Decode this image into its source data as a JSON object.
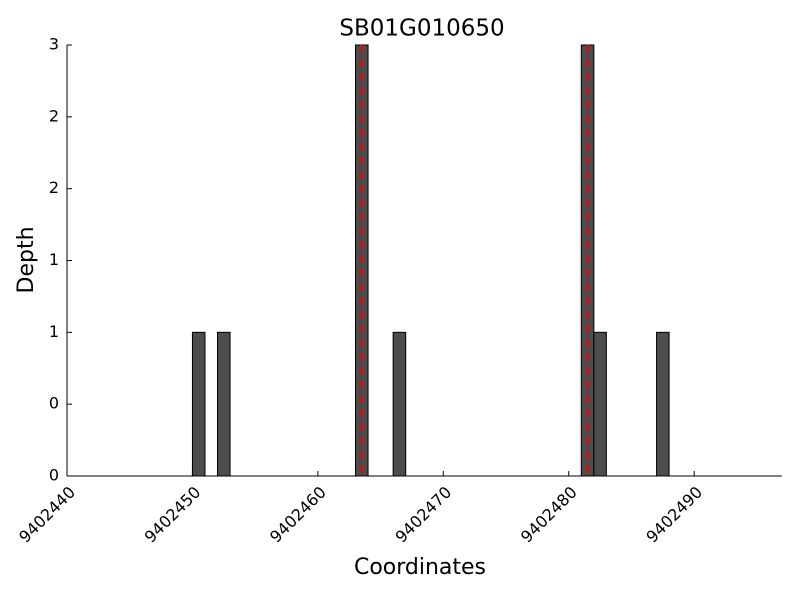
{
  "chart_data": {
    "type": "bar",
    "title": "SB01G010650",
    "xlabel": "Coordinates",
    "ylabel": "Depth",
    "x": [
      9402450,
      9402452,
      9402463,
      9402466,
      9402481,
      9402482,
      9402487
    ],
    "values": [
      1,
      1,
      3,
      1,
      3,
      1,
      1
    ],
    "color": "#4d4d4d",
    "marker_color": "#cc1111",
    "markers": [
      9402463.5,
      9402481.5
    ],
    "xlim": [
      9402440,
      9402497
    ],
    "xticks": [
      9402440,
      9402450,
      9402460,
      9402470,
      9402480,
      9402490
    ],
    "ylim": [
      0,
      3
    ],
    "yticks": [
      {
        "value": 0,
        "label": "0"
      },
      {
        "value": 0.5,
        "label": "0"
      },
      {
        "value": 1,
        "label": "1"
      },
      {
        "value": 1.5,
        "label": "1"
      },
      {
        "value": 2,
        "label": "2"
      },
      {
        "value": 2.5,
        "label": "2"
      },
      {
        "value": 3,
        "label": "3"
      }
    ]
  }
}
